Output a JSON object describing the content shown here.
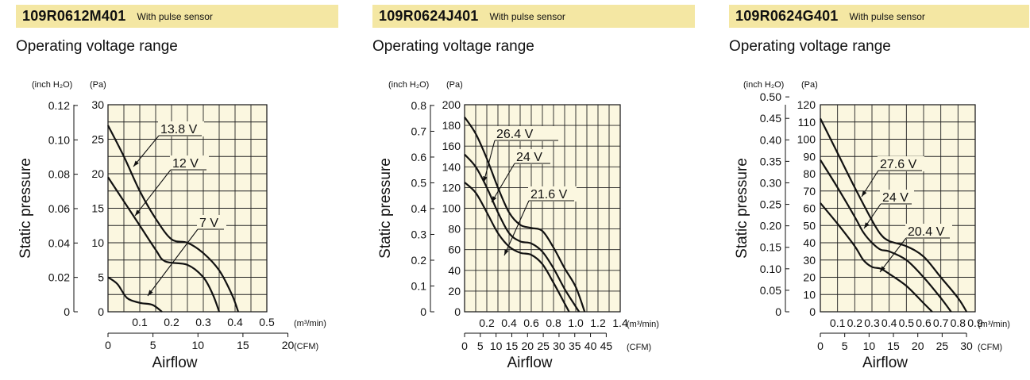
{
  "panels": [
    {
      "model": "109R0612M401",
      "note": "With pulse sensor",
      "section_title": "Operating voltage range",
      "chart_data": {
        "type": "line",
        "ylabel": "Static pressure",
        "xlabel": "Airflow",
        "y_unit_left": "(inch H₂O)",
        "y_unit_right": "(Pa)",
        "x_unit_top": "(m³/min)",
        "x_unit_bottom": "(CFM)",
        "y_pa_range": [
          0,
          30
        ],
        "y_pa_ticks": [
          "0",
          "5",
          "10",
          "15",
          "20",
          "25",
          "30"
        ],
        "y_inch_ticks": [
          {
            "v": 0,
            "l": "0"
          },
          {
            "v": 0.02,
            "l": "0.02"
          },
          {
            "v": 0.04,
            "l": "0.04"
          },
          {
            "v": 0.06,
            "l": "0.06"
          },
          {
            "v": 0.08,
            "l": "0.08"
          },
          {
            "v": 0.1,
            "l": "0.10"
          },
          {
            "v": 0.12,
            "l": "0.12"
          }
        ],
        "x_m3_range": [
          0,
          0.5
        ],
        "x_m3_ticks": [
          {
            "v": 0.1,
            "l": "0.1"
          },
          {
            "v": 0.2,
            "l": "0.2"
          },
          {
            "v": 0.3,
            "l": "0.3"
          },
          {
            "v": 0.4,
            "l": "0.4"
          },
          {
            "v": 0.5,
            "l": "0.5"
          }
        ],
        "x_cfm_ticks": [
          {
            "v": 0,
            "l": "0"
          },
          {
            "v": 5,
            "l": "5"
          },
          {
            "v": 10,
            "l": "10"
          },
          {
            "v": 15,
            "l": "15"
          },
          {
            "v": 20,
            "l": "20"
          }
        ],
        "grid": true,
        "series": [
          {
            "name": "13.8 V",
            "points": [
              [
                0,
                27
              ],
              [
                0.05,
                22.5
              ],
              [
                0.1,
                17.5
              ],
              [
                0.15,
                13.5
              ],
              [
                0.2,
                10.5
              ],
              [
                0.25,
                10
              ],
              [
                0.3,
                8.5
              ],
              [
                0.35,
                6
              ],
              [
                0.39,
                2.5
              ],
              [
                0.41,
                0
              ]
            ]
          },
          {
            "name": "12 V",
            "points": [
              [
                0,
                19.5
              ],
              [
                0.05,
                16
              ],
              [
                0.1,
                12.5
              ],
              [
                0.15,
                9
              ],
              [
                0.18,
                7.3
              ],
              [
                0.25,
                6.8
              ],
              [
                0.3,
                5
              ],
              [
                0.33,
                2.5
              ],
              [
                0.35,
                0
              ]
            ]
          },
          {
            "name": "7 V",
            "points": [
              [
                0,
                5
              ],
              [
                0.03,
                4
              ],
              [
                0.06,
                2
              ],
              [
                0.1,
                1.3
              ],
              [
                0.14,
                1
              ],
              [
                0.17,
                0
              ]
            ]
          }
        ]
      }
    },
    {
      "model": "109R0624J401",
      "note": "With pulse sensor",
      "section_title": "Operating voltage range",
      "chart_data": {
        "type": "line",
        "ylabel": "Static pressure",
        "xlabel": "Airflow",
        "y_unit_left": "(inch H₂O)",
        "y_unit_right": "(Pa)",
        "x_unit_top": "(m³/min)",
        "x_unit_bottom": "(CFM)",
        "y_pa_range": [
          0,
          200
        ],
        "y_pa_ticks": [
          "0",
          "20",
          "40",
          "60",
          "80",
          "100",
          "120",
          "140",
          "160",
          "180",
          "200"
        ],
        "y_inch_ticks": [
          {
            "v": 0,
            "l": "0"
          },
          {
            "v": 0.1,
            "l": "0.1"
          },
          {
            "v": 0.2,
            "l": "0.2"
          },
          {
            "v": 0.3,
            "l": "0.3"
          },
          {
            "v": 0.4,
            "l": "0.4"
          },
          {
            "v": 0.5,
            "l": "0.5"
          },
          {
            "v": 0.6,
            "l": "0.6"
          },
          {
            "v": 0.7,
            "l": "0.7"
          },
          {
            "v": 0.8,
            "l": "0.8"
          }
        ],
        "x_m3_range": [
          0,
          1.4
        ],
        "x_m3_ticks": [
          {
            "v": 0.2,
            "l": "0.2"
          },
          {
            "v": 0.4,
            "l": "0.4"
          },
          {
            "v": 0.6,
            "l": "0.6"
          },
          {
            "v": 0.8,
            "l": "0.8"
          },
          {
            "v": 1.0,
            "l": "1.0"
          },
          {
            "v": 1.2,
            "l": "1.2"
          },
          {
            "v": 1.4,
            "l": "1.4"
          }
        ],
        "x_cfm_ticks": [
          {
            "v": 0,
            "l": "0"
          },
          {
            "v": 5,
            "l": "5"
          },
          {
            "v": 10,
            "l": "10"
          },
          {
            "v": 15,
            "l": "15"
          },
          {
            "v": 20,
            "l": "20"
          },
          {
            "v": 25,
            "l": "25"
          },
          {
            "v": 30,
            "l": "30"
          },
          {
            "v": 35,
            "l": "35"
          },
          {
            "v": 40,
            "l": "40"
          },
          {
            "v": 45,
            "l": "45"
          }
        ],
        "grid": true,
        "series": [
          {
            "name": "26.4 V",
            "points": [
              [
                0,
                188
              ],
              [
                0.1,
                172
              ],
              [
                0.2,
                148
              ],
              [
                0.3,
                120
              ],
              [
                0.4,
                96
              ],
              [
                0.5,
                84
              ],
              [
                0.6,
                81
              ],
              [
                0.7,
                78
              ],
              [
                0.8,
                62
              ],
              [
                0.9,
                42
              ],
              [
                1.0,
                24
              ],
              [
                1.08,
                0
              ]
            ]
          },
          {
            "name": "24 V",
            "points": [
              [
                0,
                152
              ],
              [
                0.1,
                140
              ],
              [
                0.2,
                120
              ],
              [
                0.3,
                96
              ],
              [
                0.4,
                76
              ],
              [
                0.5,
                68
              ],
              [
                0.6,
                66
              ],
              [
                0.7,
                58
              ],
              [
                0.8,
                42
              ],
              [
                0.9,
                22
              ],
              [
                1.0,
                5
              ],
              [
                1.03,
                0
              ]
            ]
          },
          {
            "name": "21.6 V",
            "points": [
              [
                0,
                125
              ],
              [
                0.1,
                115
              ],
              [
                0.2,
                96
              ],
              [
                0.3,
                76
              ],
              [
                0.4,
                63
              ],
              [
                0.5,
                57
              ],
              [
                0.6,
                55
              ],
              [
                0.7,
                46
              ],
              [
                0.8,
                28
              ],
              [
                0.9,
                8
              ],
              [
                0.94,
                0
              ]
            ]
          }
        ]
      }
    },
    {
      "model": "109R0624G401",
      "note": "With pulse sensor",
      "section_title": "Operating voltage range",
      "chart_data": {
        "type": "line",
        "ylabel": "Static pressure",
        "xlabel": "Airflow",
        "y_unit_left": "(inch H₂O)",
        "y_unit_right": "(Pa)",
        "x_unit_top": "(m³/min)",
        "x_unit_bottom": "(CFM)",
        "y_pa_range": [
          0,
          120
        ],
        "y_pa_ticks": [
          "0",
          "10",
          "20",
          "30",
          "40",
          "50",
          "60",
          "70",
          "80",
          "90",
          "100",
          "110",
          "120"
        ],
        "y_inch_ticks": [
          {
            "v": 0,
            "l": "0"
          },
          {
            "v": 0.05,
            "l": "0.05"
          },
          {
            "v": 0.1,
            "l": "0.10"
          },
          {
            "v": 0.15,
            "l": "0.15"
          },
          {
            "v": 0.2,
            "l": "0.20"
          },
          {
            "v": 0.25,
            "l": "0.25"
          },
          {
            "v": 0.3,
            "l": "0.30"
          },
          {
            "v": 0.35,
            "l": "0.35"
          },
          {
            "v": 0.4,
            "l": "0.40"
          },
          {
            "v": 0.45,
            "l": "0.45"
          },
          {
            "v": 0.5,
            "l": "0.50"
          }
        ],
        "x_m3_range": [
          0,
          0.9
        ],
        "x_m3_ticks": [
          {
            "v": 0.1,
            "l": "0.1"
          },
          {
            "v": 0.2,
            "l": "0.2"
          },
          {
            "v": 0.3,
            "l": "0.3"
          },
          {
            "v": 0.4,
            "l": "0.4"
          },
          {
            "v": 0.5,
            "l": "0.5"
          },
          {
            "v": 0.6,
            "l": "0.6"
          },
          {
            "v": 0.7,
            "l": "0.7"
          },
          {
            "v": 0.8,
            "l": "0.8"
          },
          {
            "v": 0.9,
            "l": "0.9"
          }
        ],
        "x_cfm_ticks": [
          {
            "v": 0,
            "l": "0"
          },
          {
            "v": 5,
            "l": "5"
          },
          {
            "v": 10,
            "l": "10"
          },
          {
            "v": 15,
            "l": "15"
          },
          {
            "v": 20,
            "l": "20"
          },
          {
            "v": 25,
            "l": "25"
          },
          {
            "v": 30,
            "l": "30"
          }
        ],
        "grid": true,
        "series": [
          {
            "name": "27.6 V",
            "points": [
              [
                0,
                112
              ],
              [
                0.1,
                92
              ],
              [
                0.2,
                72
              ],
              [
                0.3,
                53
              ],
              [
                0.35,
                45
              ],
              [
                0.4,
                41
              ],
              [
                0.5,
                38
              ],
              [
                0.6,
                32
              ],
              [
                0.7,
                20
              ],
              [
                0.8,
                8
              ],
              [
                0.85,
                0
              ]
            ]
          },
          {
            "name": "24 V",
            "points": [
              [
                0,
                88
              ],
              [
                0.1,
                72
              ],
              [
                0.2,
                55
              ],
              [
                0.25,
                46
              ],
              [
                0.3,
                40
              ],
              [
                0.35,
                36
              ],
              [
                0.4,
                35
              ],
              [
                0.5,
                30
              ],
              [
                0.6,
                20
              ],
              [
                0.7,
                8
              ],
              [
                0.76,
                0
              ]
            ]
          },
          {
            "name": "20.4 V",
            "points": [
              [
                0,
                63
              ],
              [
                0.1,
                51
              ],
              [
                0.2,
                38
              ],
              [
                0.25,
                30
              ],
              [
                0.3,
                26
              ],
              [
                0.35,
                25
              ],
              [
                0.4,
                22
              ],
              [
                0.5,
                15
              ],
              [
                0.6,
                5
              ],
              [
                0.65,
                0
              ]
            ]
          }
        ]
      }
    }
  ]
}
